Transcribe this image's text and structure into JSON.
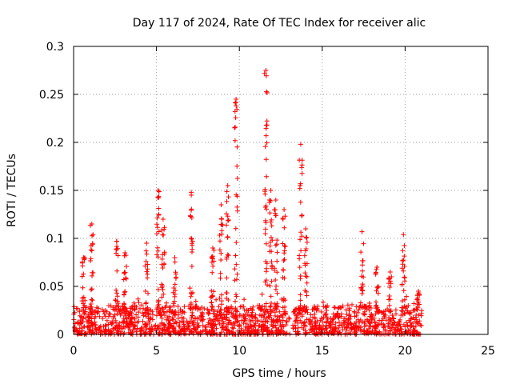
{
  "chart_data": {
    "type": "scatter",
    "title": "Day 117 of 2024, Rate Of TEC Index for receiver alic",
    "xlabel": "GPS time / hours",
    "ylabel": "ROTI / TECUs",
    "xlim": [
      0,
      25
    ],
    "ylim": [
      0,
      0.3
    ],
    "x_ticks": [
      0,
      5,
      10,
      15,
      20,
      25
    ],
    "x_tick_labels": [
      "0",
      "5",
      "10",
      "15",
      "20",
      "25"
    ],
    "y_ticks": [
      0,
      0.05,
      0.1,
      0.15,
      0.2,
      0.25,
      0.3
    ],
    "y_tick_labels": [
      "0",
      "0.05",
      "0.1",
      "0.15",
      "0.2",
      "0.25",
      "0.3"
    ],
    "grid": true,
    "marker": "+",
    "marker_color": "#ff0000",
    "data_range_hours": [
      0,
      21
    ],
    "baseline_max": 0.03,
    "series": [
      {
        "name": "ROTI",
        "peaks": [
          {
            "t": 0.6,
            "v": 0.08
          },
          {
            "t": 1.1,
            "v": 0.115
          },
          {
            "t": 2.6,
            "v": 0.097
          },
          {
            "t": 3.1,
            "v": 0.085
          },
          {
            "t": 4.4,
            "v": 0.095
          },
          {
            "t": 5.1,
            "v": 0.15
          },
          {
            "t": 5.4,
            "v": 0.12
          },
          {
            "t": 6.1,
            "v": 0.08
          },
          {
            "t": 7.1,
            "v": 0.148
          },
          {
            "t": 8.4,
            "v": 0.09
          },
          {
            "t": 8.9,
            "v": 0.135
          },
          {
            "t": 9.3,
            "v": 0.155
          },
          {
            "t": 9.8,
            "v": 0.245
          },
          {
            "t": 11.6,
            "v": 0.275
          },
          {
            "t": 11.9,
            "v": 0.15
          },
          {
            "t": 12.2,
            "v": 0.14
          },
          {
            "t": 12.7,
            "v": 0.13
          },
          {
            "t": 13.7,
            "v": 0.198
          },
          {
            "t": 14.0,
            "v": 0.11
          },
          {
            "t": 17.4,
            "v": 0.107
          },
          {
            "t": 18.3,
            "v": 0.07
          },
          {
            "t": 19.1,
            "v": 0.065
          },
          {
            "t": 19.9,
            "v": 0.104
          },
          {
            "t": 20.8,
            "v": 0.045
          }
        ]
      }
    ]
  }
}
